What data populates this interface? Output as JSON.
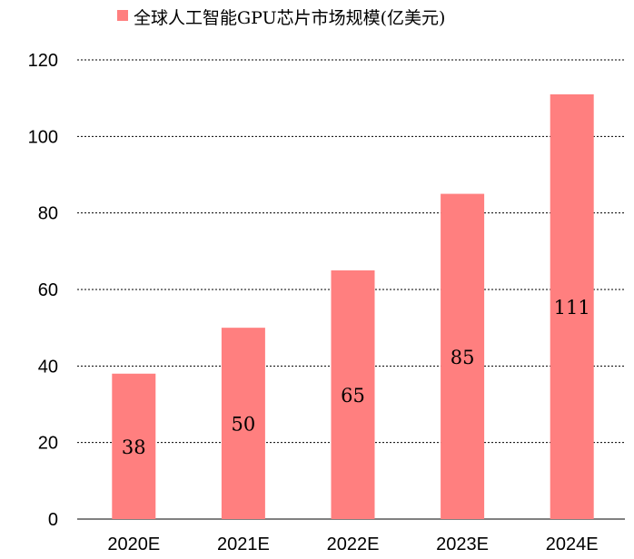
{
  "chart_data": {
    "type": "bar",
    "categories": [
      "2020E",
      "2021E",
      "2022E",
      "2023E",
      "2024E"
    ],
    "series": [
      {
        "name": "全球人工智能GPU芯片市场规模(亿美元)",
        "values": [
          38,
          50,
          65,
          85,
          111
        ]
      }
    ],
    "data_labels": [
      "38",
      "50",
      "65",
      "85",
      "111"
    ],
    "ylim": [
      0,
      120
    ],
    "yticks": [
      0,
      20,
      40,
      60,
      80,
      100,
      120
    ],
    "ytick_labels": [
      "0",
      "20",
      "40",
      "60",
      "80",
      "100",
      "120"
    ],
    "grid": true,
    "legend_position": "top",
    "bar_color": "#FF7F7F",
    "grid_color": "#000000"
  }
}
